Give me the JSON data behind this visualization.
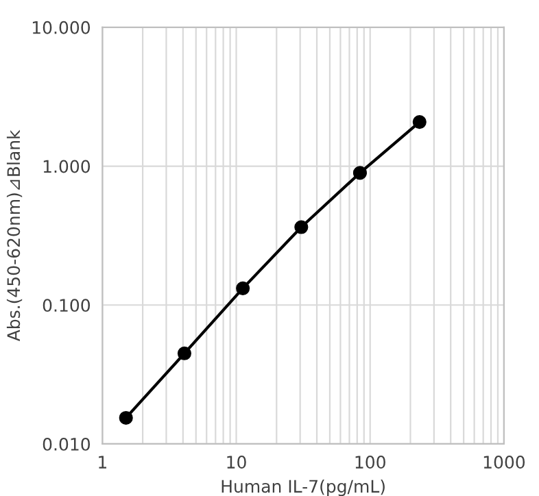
{
  "chart_data": {
    "type": "line",
    "xlabel": "Human IL-7(pg/mL)",
    "ylabel": "Abs.(450-620nm)⊿Blank",
    "log": "xy",
    "grid": true,
    "marker": "circle",
    "line_style": "solid",
    "x": [
      1.5,
      4.1,
      11.2,
      30.6,
      84,
      234
    ],
    "series": [
      {
        "color": "#000000",
        "values": [
          0.0154,
          0.0449,
          0.132,
          0.364,
          0.894,
          2.08
        ]
      }
    ],
    "xlim": [
      1,
      1000
    ],
    "xticks": [
      1,
      10,
      100,
      1000
    ],
    "ylim": [
      0.01,
      10
    ],
    "yticks": [
      {
        "value": 0.01,
        "label": "0.010"
      },
      {
        "value": 0.1,
        "label": "0.100"
      },
      {
        "value": 1,
        "label": "1.000"
      },
      {
        "value": 10,
        "label": "10.000"
      }
    ]
  }
}
